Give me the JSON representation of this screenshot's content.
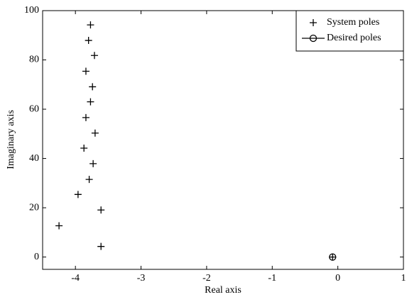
{
  "chart_data": {
    "type": "scatter",
    "x_label": "Real axis",
    "y_label": "Imaginary axis",
    "xlim": [
      -4.5,
      1
    ],
    "ylim": [
      -5,
      100
    ],
    "xticks": [
      -4,
      -3,
      -2,
      -1,
      0,
      1
    ],
    "yticks": [
      0,
      20,
      40,
      60,
      80,
      100
    ],
    "legend": "upper right",
    "series": [
      {
        "name": "System poles",
        "color": "#000000",
        "marker": "plus",
        "x": [
          -3.77,
          -3.8,
          -3.71,
          -3.84,
          -3.74,
          -3.77,
          -3.84,
          -3.7,
          -3.87,
          -3.73,
          -3.79,
          -3.96,
          -3.61,
          -4.25,
          -3.61,
          -0.08
        ],
        "values": [
          94.2,
          87.9,
          81.8,
          75.4,
          69.1,
          63.0,
          56.6,
          50.3,
          44.2,
          37.9,
          31.5,
          25.4,
          19.1,
          12.7,
          4.3,
          0
        ]
      },
      {
        "name": "Desired poles",
        "color": "#000000",
        "marker": "circle",
        "x": [
          -0.08
        ],
        "values": [
          0
        ]
      }
    ]
  }
}
